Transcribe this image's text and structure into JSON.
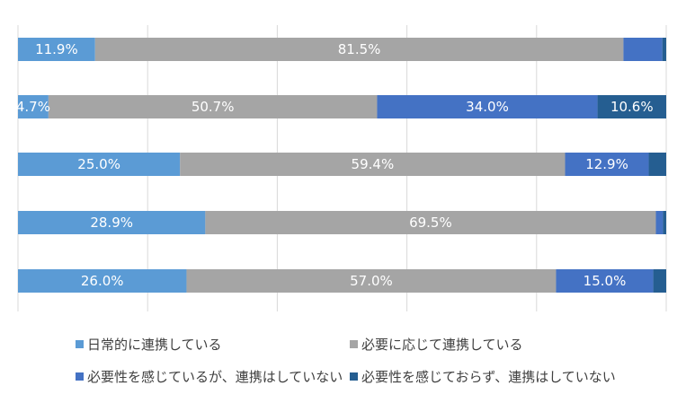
{
  "chart_data": {
    "type": "bar",
    "orientation": "horizontal",
    "stacked": "percent",
    "title": "",
    "xlabel": "",
    "ylabel": "",
    "xlim": [
      0,
      100
    ],
    "grid": true,
    "legend_position": "bottom",
    "categories": [
      "",
      "",
      "",
      "",
      ""
    ],
    "series": [
      {
        "name": "日常的に連携している",
        "color": "#5B9BD5",
        "values": [
          11.9,
          4.7,
          25.0,
          28.9,
          26.0
        ],
        "labels": [
          "11.9%",
          "4.7%",
          "25.0%",
          "28.9%",
          "26.0%"
        ]
      },
      {
        "name": "必要に応じて連携している",
        "color": "#A5A5A5",
        "values": [
          81.5,
          50.7,
          59.4,
          69.5,
          57.0
        ],
        "labels": [
          "81.5%",
          "50.7%",
          "59.4%",
          "69.5%",
          "57.0%"
        ]
      },
      {
        "name": "必要性を感じているが、連携はしていない",
        "color": "#4472C4",
        "values": [
          6.0,
          34.0,
          12.9,
          1.1,
          15.0
        ],
        "labels": [
          "",
          "34.0%",
          "12.9%",
          "",
          "15.0%"
        ]
      },
      {
        "name": "必要性を感じておらず、連携はしていない",
        "color": "#255E91",
        "values": [
          0.6,
          10.6,
          2.7,
          0.5,
          2.0
        ],
        "labels": [
          "",
          "10.6%",
          "",
          "",
          ""
        ]
      }
    ]
  }
}
